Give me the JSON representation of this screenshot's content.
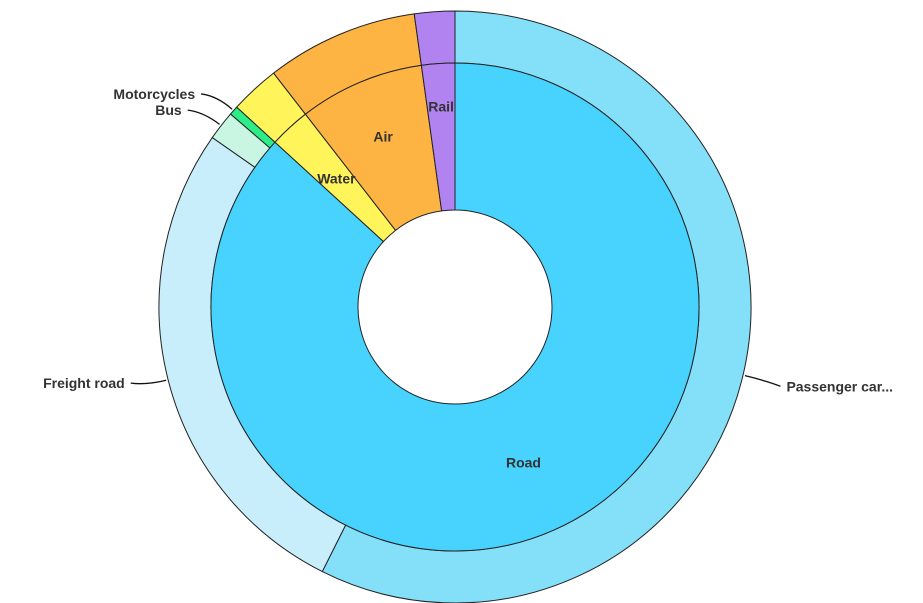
{
  "chart_data": {
    "type": "pie",
    "inner_ring": [
      {
        "label": "Road",
        "value": 86.8,
        "color": "#48d3fe"
      },
      {
        "label": "Water",
        "value": 2.7,
        "color": "#fff45a"
      },
      {
        "label": "Air",
        "value": 8.3,
        "color": "#fdb443"
      },
      {
        "label": "Rail",
        "value": 2.2,
        "color": "#b183f1"
      }
    ],
    "outer_ring": [
      {
        "label": "Passenger car...",
        "value": 57.4,
        "color": "#84dff9"
      },
      {
        "label": "Freight road",
        "value": 27.3,
        "color": "#c8eefc"
      },
      {
        "label": "Bus",
        "value": 1.6,
        "color": "#c8f6e3"
      },
      {
        "label": "Motorcycles",
        "value": 0.5,
        "color": "#2bee86"
      },
      {
        "label": "",
        "value": 2.7,
        "color": "#fff45a"
      },
      {
        "label": "",
        "value": 8.3,
        "color": "#fdb443"
      },
      {
        "label": "",
        "value": 2.2,
        "color": "#b183f1"
      }
    ],
    "legend": "none"
  }
}
